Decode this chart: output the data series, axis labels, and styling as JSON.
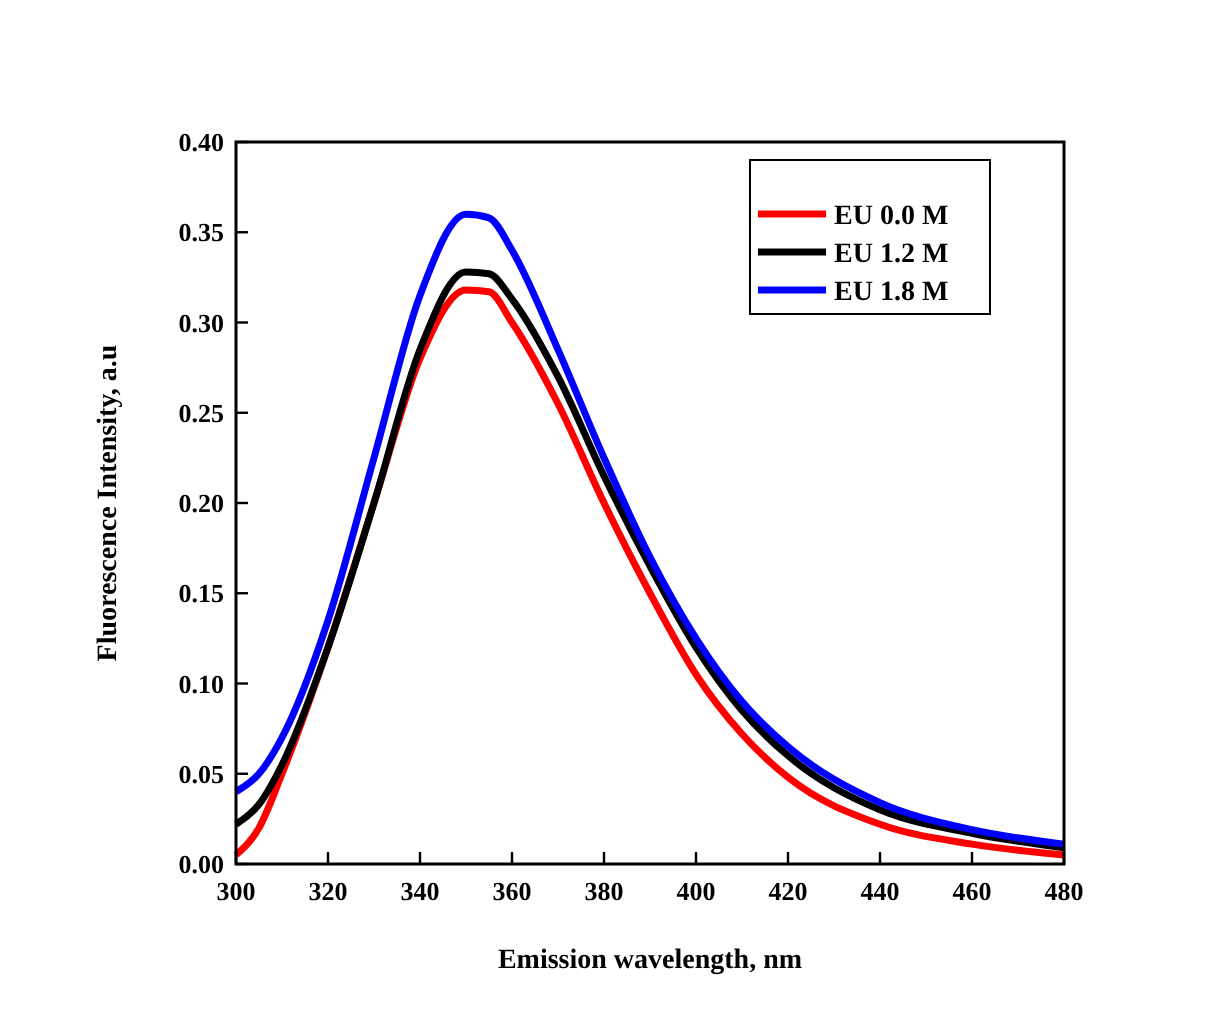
{
  "chart_data": {
    "type": "line",
    "xlabel": "Emission wavelength, nm",
    "ylabel": "Fluorescence Intensity, a.u",
    "x": [
      300,
      305,
      310,
      320,
      330,
      340,
      350,
      355,
      360,
      370,
      380,
      390,
      400,
      410,
      420,
      440,
      460,
      480
    ],
    "series": [
      {
        "name": "EU 0.0 M",
        "color": "#ff0000",
        "values": [
          0.005,
          0.02,
          0.05,
          0.12,
          0.2,
          0.28,
          0.318,
          0.317,
          0.3,
          0.255,
          0.2,
          0.15,
          0.105,
          0.072,
          0.048,
          0.022,
          0.011,
          0.005
        ]
      },
      {
        "name": "EU 1.2 M",
        "color": "#000000",
        "values": [
          0.022,
          0.033,
          0.055,
          0.12,
          0.2,
          0.285,
          0.328,
          0.327,
          0.313,
          0.27,
          0.215,
          0.165,
          0.12,
          0.085,
          0.06,
          0.03,
          0.017,
          0.009
        ]
      },
      {
        "name": "EU 1.8 M",
        "color": "#0000ff",
        "values": [
          0.04,
          0.05,
          0.07,
          0.135,
          0.225,
          0.315,
          0.36,
          0.358,
          0.34,
          0.285,
          0.225,
          0.17,
          0.125,
          0.09,
          0.065,
          0.034,
          0.019,
          0.011
        ]
      }
    ],
    "xlim": [
      300,
      480
    ],
    "xticks": [
      300,
      320,
      340,
      360,
      380,
      400,
      420,
      440,
      460,
      480
    ],
    "ylim": [
      0,
      0.4
    ],
    "yticks": [
      {
        "value": 0,
        "label": "0.00"
      },
      {
        "value": 0.05,
        "label": "0.05"
      },
      {
        "value": 0.1,
        "label": "0.10"
      },
      {
        "value": 0.15,
        "label": "0.15"
      },
      {
        "value": 0.2,
        "label": "0.20"
      },
      {
        "value": 0.25,
        "label": "0.25"
      },
      {
        "value": 0.3,
        "label": "0.30"
      },
      {
        "value": 0.35,
        "label": "0.35"
      },
      {
        "value": 0.4,
        "label": "0.40"
      }
    ],
    "legend": "top right",
    "grid": false,
    "line_style": "solid",
    "marker": "none"
  }
}
